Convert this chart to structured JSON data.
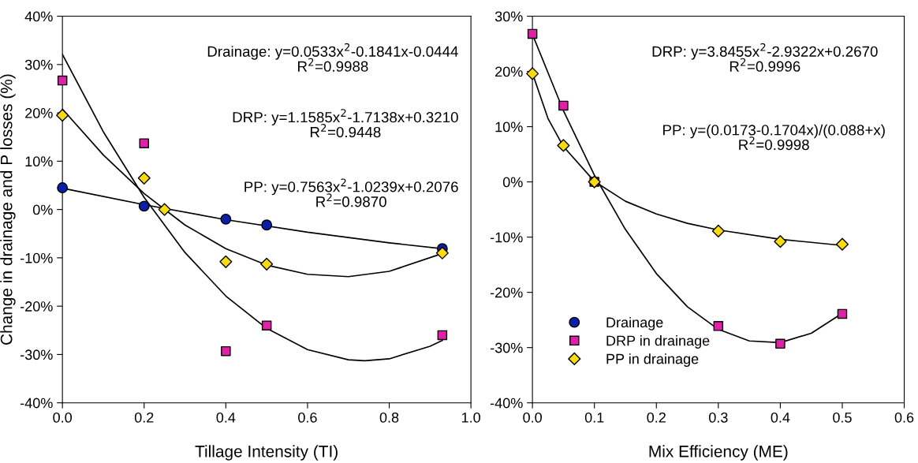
{
  "chart_data": [
    {
      "type": "scatter",
      "xlabel": "Tillage Intensity (TI)",
      "ylabel": "Change in drainage and P losses (%)",
      "xlim": [
        0,
        1
      ],
      "xticks": [
        {
          "value": 0,
          "label": "0.0"
        },
        {
          "value": 0.2,
          "label": "0.2"
        },
        {
          "value": 0.4,
          "label": "0.4"
        },
        {
          "value": 0.6,
          "label": "0.6"
        },
        {
          "value": 0.8,
          "label": "0.8"
        },
        {
          "value": 1,
          "label": "1.0"
        }
      ],
      "ylim": [
        -40,
        40
      ],
      "yticks": [
        {
          "value": -40,
          "label": "-40%"
        },
        {
          "value": -30,
          "label": "-30%"
        },
        {
          "value": -20,
          "label": "-20%"
        },
        {
          "value": -10,
          "label": "-10%"
        },
        {
          "value": 0,
          "label": "0%"
        },
        {
          "value": 10,
          "label": "10%"
        },
        {
          "value": 20,
          "label": "20%"
        },
        {
          "value": 30,
          "label": "30%"
        },
        {
          "value": 40,
          "label": "40%"
        }
      ],
      "grid": false,
      "legend": false,
      "annotations": [
        "Drainage: y=0.0533x$^{2}$-0.1841x-0.0444\nR$^{2}$=0.9988",
        "DRP: y=1.1585x$^{2}$-1.7138x+0.3210\nR$^{2}$=0.9448",
        "PP: y=0.7563x$^{2}$-1.0239x+0.2076\nR$^{2}$=0.9870"
      ],
      "series": [
        {
          "type": "line",
          "color": "#000000",
          "marker": "none",
          "x": [
            0,
            0.2,
            0.4,
            0.6,
            0.8,
            0.93
          ],
          "values": [
            4.4,
            1.0,
            -2.1,
            -4.7,
            -6.9,
            -8.1
          ]
        },
        {
          "type": "line",
          "color": "#000000",
          "marker": "none",
          "x": [
            0,
            0.1,
            0.2,
            0.3,
            0.4,
            0.5,
            0.6,
            0.7,
            0.74,
            0.8,
            0.9,
            0.93
          ],
          "values": [
            32.1,
            16.1,
            2.5,
            -8.9,
            -17.9,
            -24.6,
            -29.0,
            -31.1,
            -31.3,
            -30.9,
            -28.3,
            -27.1
          ]
        },
        {
          "type": "line",
          "color": "#000000",
          "marker": "none",
          "x": [
            0,
            0.1,
            0.2,
            0.3,
            0.4,
            0.5,
            0.6,
            0.7,
            0.8,
            0.93
          ],
          "values": [
            20.8,
            11.3,
            3.3,
            -3.2,
            -8.1,
            -11.5,
            -13.4,
            -13.9,
            -12.8,
            -9.1
          ]
        },
        {
          "color": "#0a1fa8",
          "marker": "circle",
          "x": [
            0,
            0.2,
            0.4,
            0.5,
            0.93
          ],
          "values": [
            4.5,
            0.7,
            -2.0,
            -3.2,
            -8.1
          ]
        },
        {
          "color": "#e020a8",
          "marker": "square",
          "x": [
            0,
            0.2,
            0.4,
            0.5,
            0.93
          ],
          "values": [
            26.7,
            13.7,
            -29.3,
            -24.0,
            -26.0
          ]
        },
        {
          "color": "#f8dc10",
          "marker": "diamond",
          "x": [
            0,
            0.2,
            0.25,
            0.4,
            0.5,
            0.93
          ],
          "values": [
            19.5,
            6.5,
            0.0,
            -10.8,
            -11.3,
            -9.0
          ]
        }
      ]
    },
    {
      "type": "scatter",
      "xlabel": "Mix Efficiency (ME)",
      "xlim": [
        0,
        0.6
      ],
      "xticks": [
        {
          "value": 0,
          "label": "0.0"
        },
        {
          "value": 0.1,
          "label": "0.1"
        },
        {
          "value": 0.2,
          "label": "0.2"
        },
        {
          "value": 0.3,
          "label": "0.3"
        },
        {
          "value": 0.4,
          "label": "0.4"
        },
        {
          "value": 0.5,
          "label": "0.5"
        },
        {
          "value": 0.6,
          "label": "0.6"
        }
      ],
      "ylim": [
        -40,
        30
      ],
      "yticks": [
        {
          "value": -40,
          "label": "-40%"
        },
        {
          "value": -30,
          "label": "-30%"
        },
        {
          "value": -20,
          "label": "-20%"
        },
        {
          "value": -10,
          "label": "-10%"
        },
        {
          "value": 0,
          "label": "0%"
        },
        {
          "value": 10,
          "label": "10%"
        },
        {
          "value": 20,
          "label": "20%"
        },
        {
          "value": 30,
          "label": "30%"
        }
      ],
      "grid": false,
      "legend": "lower left",
      "annotations": [
        "DRP: y=3.8455x$^{2}$-2.9322x+0.2670\nR$^{2}$=0.9996",
        "PP: y=(0.0173-0.1704x)/(0.088+x)\nR$^{2}$=0.9998"
      ],
      "series": [
        {
          "type": "line",
          "color": "#000000",
          "marker": "none",
          "x": [
            0,
            0.05,
            0.1,
            0.15,
            0.2,
            0.25,
            0.3,
            0.35,
            0.4,
            0.45,
            0.5
          ],
          "values": [
            26.7,
            12.9,
            1.2,
            -8.6,
            -16.6,
            -22.6,
            -26.7,
            -28.8,
            -29.1,
            -27.4,
            -23.8
          ]
        },
        {
          "type": "line",
          "color": "#000000",
          "marker": "none",
          "x": [
            0,
            0.025,
            0.05,
            0.1,
            0.15,
            0.2,
            0.25,
            0.3,
            0.4,
            0.5
          ],
          "values": [
            19.7,
            11.5,
            6.4,
            0.1,
            -3.5,
            -5.8,
            -7.5,
            -8.7,
            -10.4,
            -11.5
          ]
        },
        {
          "name": "Drainage",
          "color": "#0a1fa8",
          "marker": "circle"
        },
        {
          "name": "DRP in drainage",
          "color": "#e020a8",
          "marker": "square",
          "x": [
            0,
            0.05,
            0.1,
            0.3,
            0.4,
            0.5
          ],
          "values": [
            26.8,
            13.8,
            0.0,
            -26.1,
            -29.3,
            -23.9
          ]
        },
        {
          "name": "PP in drainage",
          "color": "#f8dc10",
          "marker": "diamond",
          "x": [
            0,
            0.05,
            0.1,
            0.3,
            0.4,
            0.5
          ],
          "values": [
            19.6,
            6.6,
            0.0,
            -8.9,
            -10.8,
            -11.3
          ]
        }
      ]
    }
  ]
}
